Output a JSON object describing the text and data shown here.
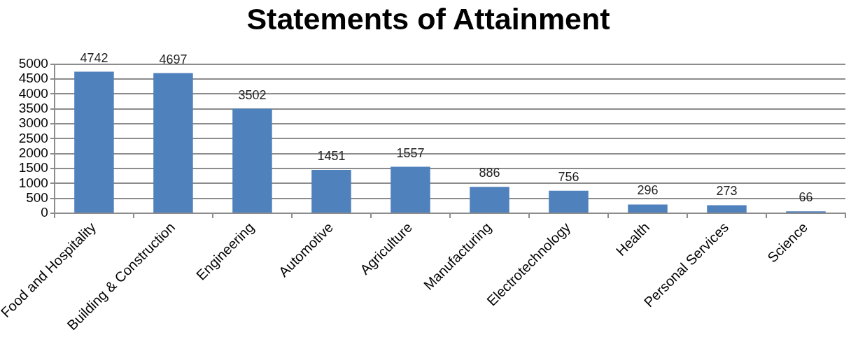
{
  "chart_data": {
    "type": "bar",
    "title": "Statements of Attainment",
    "categories": [
      "Food and Hospitality",
      "Building & Construction",
      "Engineering",
      "Automotive",
      "Agriculture",
      "Manufacturing",
      "Electrotechnology",
      "Health",
      "Personal Services",
      "Science"
    ],
    "values": [
      4742,
      4697,
      3502,
      1451,
      1557,
      886,
      756,
      296,
      273,
      66
    ],
    "color": "#4f81bd",
    "ylim": [
      0,
      5000
    ],
    "yticks": [
      0,
      500,
      1000,
      1500,
      2000,
      2500,
      3000,
      3500,
      4000,
      4500,
      5000
    ],
    "grid": "y",
    "data_labels": true
  }
}
